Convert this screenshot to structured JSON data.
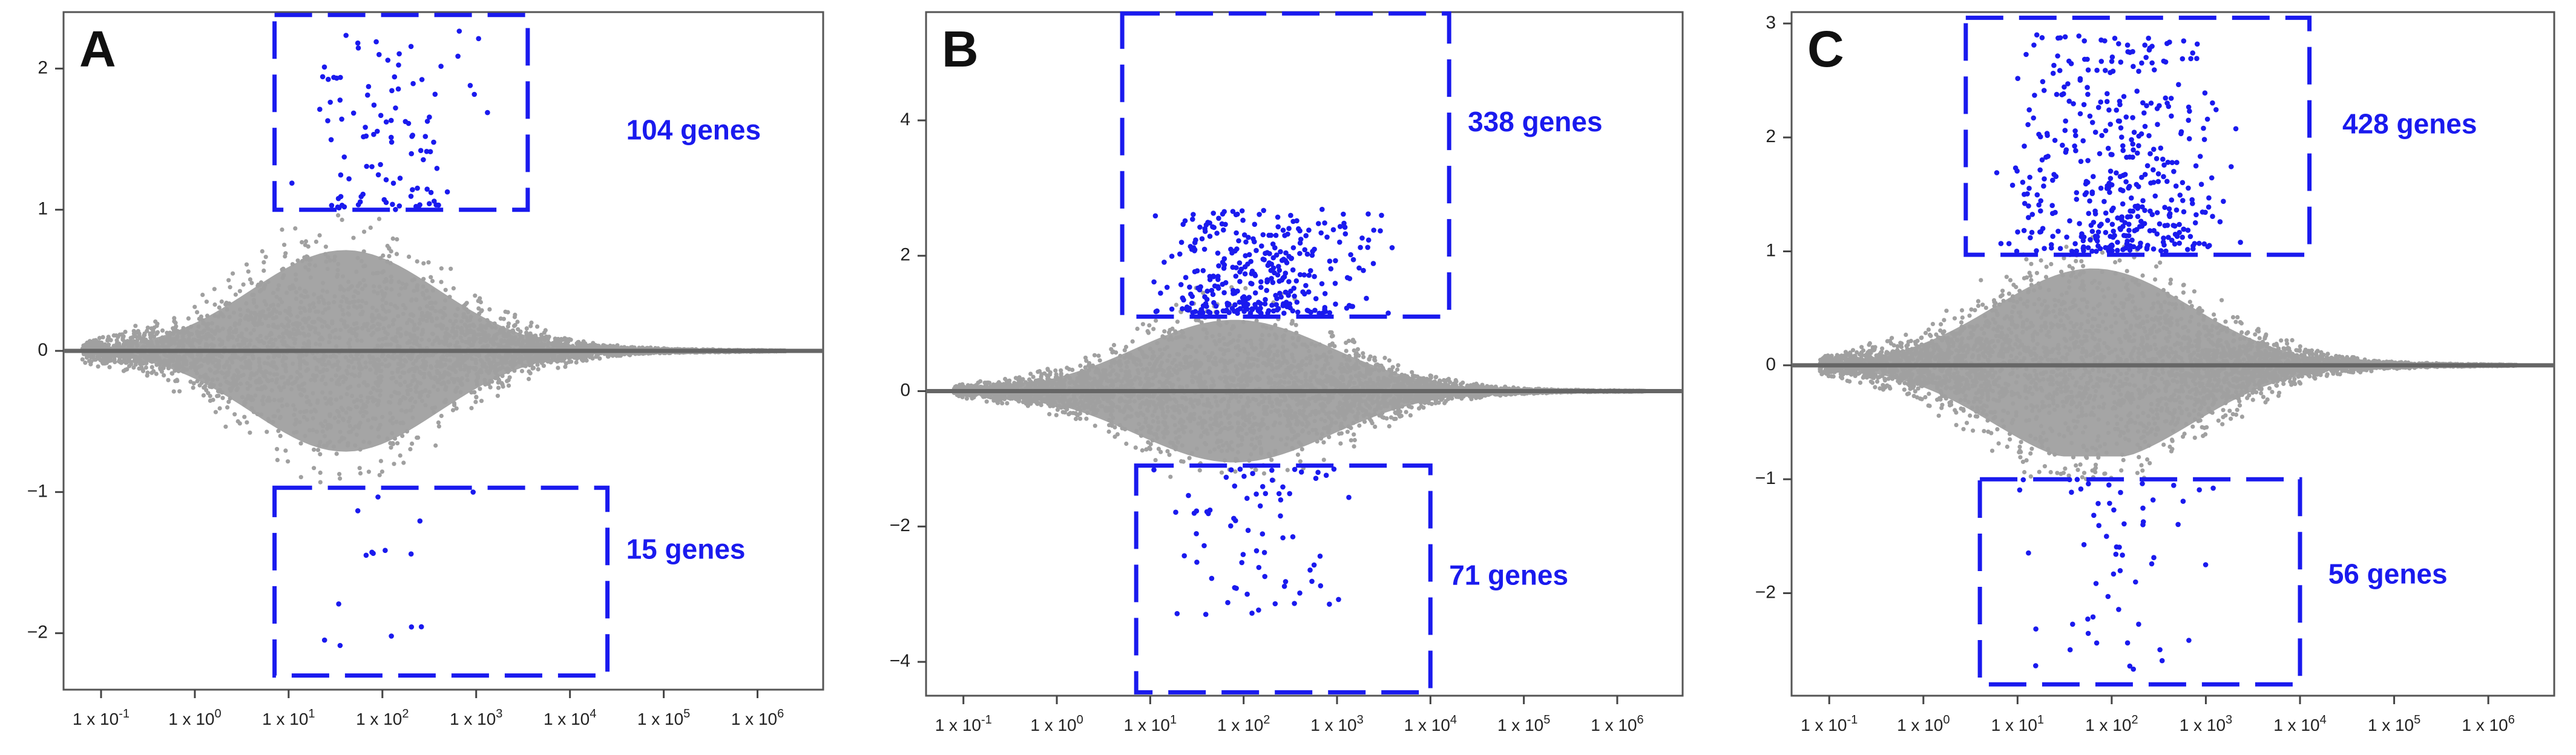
{
  "figure": {
    "point_color": "#a0a0a0",
    "highlight_color": "#1a1aee",
    "zero_line_color": "#666666",
    "note": "MA-style scatter plots; grey = all genes, blue = significant genes inside dashed selection boxes"
  },
  "chart_data": [
    {
      "type": "scatter",
      "panel_label": "A",
      "x_scale": "log10",
      "xlim_log10": [
        -1.4,
        6.7
      ],
      "ylim": [
        -2.4,
        2.4
      ],
      "x_ticks": [
        {
          "exp": -1,
          "base": "1 x 10",
          "sup": "-1"
        },
        {
          "exp": 0,
          "base": "1 x 10",
          "sup": "0"
        },
        {
          "exp": 1,
          "base": "1 x 10",
          "sup": "1"
        },
        {
          "exp": 2,
          "base": "1 x 10",
          "sup": "2"
        },
        {
          "exp": 3,
          "base": "1 x 10",
          "sup": "3"
        },
        {
          "exp": 4,
          "base": "1 x 10",
          "sup": "4"
        },
        {
          "exp": 5,
          "base": "1 x 10",
          "sup": "5"
        },
        {
          "exp": 6,
          "base": "1 x 10",
          "sup": "6"
        }
      ],
      "y_ticks": [
        {
          "value": 2,
          "label": "2"
        },
        {
          "value": 1,
          "label": "1"
        },
        {
          "value": 0,
          "label": "0"
        },
        {
          "value": -1,
          "label": "−1"
        },
        {
          "value": -2,
          "label": "−2"
        }
      ],
      "cloud": {
        "count": 4200,
        "x_min": -1.2,
        "x_max": 6.3,
        "peak_x": 1.6,
        "spread_x": 1.05,
        "max_half_width": 1.05,
        "up_max": 1.0,
        "down_max": 0.95
      },
      "up_box": {
        "x_log10": [
          0.85,
          3.55
        ],
        "y": [
          1.0,
          2.45
        ],
        "label": "104 genes",
        "label_pos_log10": 4.6,
        "label_y": 1.55
      },
      "down_box": {
        "x_log10": [
          0.85,
          4.4
        ],
        "y": [
          -2.3,
          -0.97
        ],
        "label": "15 genes",
        "label_pos_log10": 4.6,
        "label_y": -1.42
      },
      "up_genes": {
        "count": 104,
        "x": [
          1.0,
          3.2
        ],
        "y": [
          1.0,
          2.3
        ]
      },
      "down_genes": {
        "count": 15,
        "x": [
          1.0,
          3.3
        ],
        "y": [
          -2.25,
          -1.0
        ]
      }
    },
    {
      "type": "scatter",
      "panel_label": "B",
      "x_scale": "log10",
      "xlim_log10": [
        -1.4,
        6.7
      ],
      "ylim": [
        -4.5,
        5.6
      ],
      "x_ticks": [
        {
          "exp": -1,
          "base": "1 x 10",
          "sup": "-1"
        },
        {
          "exp": 0,
          "base": "1 x 10",
          "sup": "0"
        },
        {
          "exp": 1,
          "base": "1 x 10",
          "sup": "1"
        },
        {
          "exp": 2,
          "base": "1 x 10",
          "sup": "2"
        },
        {
          "exp": 3,
          "base": "1 x 10",
          "sup": "3"
        },
        {
          "exp": 4,
          "base": "1 x 10",
          "sup": "4"
        },
        {
          "exp": 5,
          "base": "1 x 10",
          "sup": "5"
        },
        {
          "exp": 6,
          "base": "1 x 10",
          "sup": "6"
        }
      ],
      "y_ticks": [
        {
          "value": 4,
          "label": "4"
        },
        {
          "value": 2,
          "label": "2"
        },
        {
          "value": 0,
          "label": "0"
        },
        {
          "value": -2,
          "label": "−2"
        },
        {
          "value": -4,
          "label": "−4"
        }
      ],
      "cloud": {
        "count": 4200,
        "x_min": -1.1,
        "x_max": 6.3,
        "peak_x": 1.9,
        "spread_x": 1.1,
        "max_half_width": 1.55,
        "up_max": 1.6,
        "down_max": 1.45
      },
      "up_box": {
        "x_log10": [
          0.7,
          4.2
        ],
        "y": [
          1.1,
          5.6
        ],
        "label": "338 genes",
        "label_pos_log10": 4.4,
        "label_y": 3.95
      },
      "down_box": {
        "x_log10": [
          0.85,
          4.0
        ],
        "y": [
          -4.45,
          -1.1
        ],
        "label": "71 genes",
        "label_pos_log10": 4.2,
        "label_y": -2.75
      },
      "up_genes": {
        "count": 338,
        "x": [
          0.9,
          3.6
        ],
        "y": [
          1.15,
          2.7
        ]
      },
      "down_genes": {
        "count": 71,
        "x": [
          0.95,
          3.3
        ],
        "y": [
          -3.3,
          -1.15
        ]
      }
    },
    {
      "type": "scatter",
      "panel_label": "C",
      "x_scale": "log10",
      "xlim_log10": [
        -1.4,
        6.7
      ],
      "ylim": [
        -2.9,
        3.1
      ],
      "x_ticks": [
        {
          "exp": -1,
          "base": "1 x 10",
          "sup": "-1"
        },
        {
          "exp": 0,
          "base": "1 x 10",
          "sup": "0"
        },
        {
          "exp": 1,
          "base": "1 x 10",
          "sup": "1"
        },
        {
          "exp": 2,
          "base": "1 x 10",
          "sup": "2"
        },
        {
          "exp": 3,
          "base": "1 x 10",
          "sup": "3"
        },
        {
          "exp": 4,
          "base": "1 x 10",
          "sup": "4"
        },
        {
          "exp": 5,
          "base": "1 x 10",
          "sup": "5"
        },
        {
          "exp": 6,
          "base": "1 x 10",
          "sup": "6"
        }
      ],
      "y_ticks": [
        {
          "value": 3,
          "label": "3"
        },
        {
          "value": 2,
          "label": "2"
        },
        {
          "value": 1,
          "label": "1"
        },
        {
          "value": 0,
          "label": "0"
        },
        {
          "value": -1,
          "label": "−1"
        },
        {
          "value": -2,
          "label": "−2"
        }
      ],
      "cloud": {
        "count": 4400,
        "x_min": -1.1,
        "x_max": 6.3,
        "peak_x": 1.8,
        "spread_x": 1.1,
        "max_half_width": 1.25,
        "up_max": 1.35,
        "down_max": 1.0
      },
      "up_box": {
        "x_log10": [
          0.45,
          4.1
        ],
        "y": [
          0.97,
          3.05
        ],
        "label": "428 genes",
        "label_pos_log10": 4.45,
        "label_y": 2.1
      },
      "down_box": {
        "x_log10": [
          0.6,
          4.0
        ],
        "y": [
          -2.8,
          -1.0
        ],
        "label": "56 genes",
        "label_pos_log10": 4.3,
        "label_y": -1.85
      },
      "up_genes": {
        "count": 428,
        "x": [
          0.7,
          3.4
        ],
        "y": [
          1.0,
          2.9
        ]
      },
      "down_genes": {
        "count": 56,
        "x": [
          0.8,
          3.2
        ],
        "y": [
          -2.75,
          -1.0
        ]
      }
    }
  ]
}
